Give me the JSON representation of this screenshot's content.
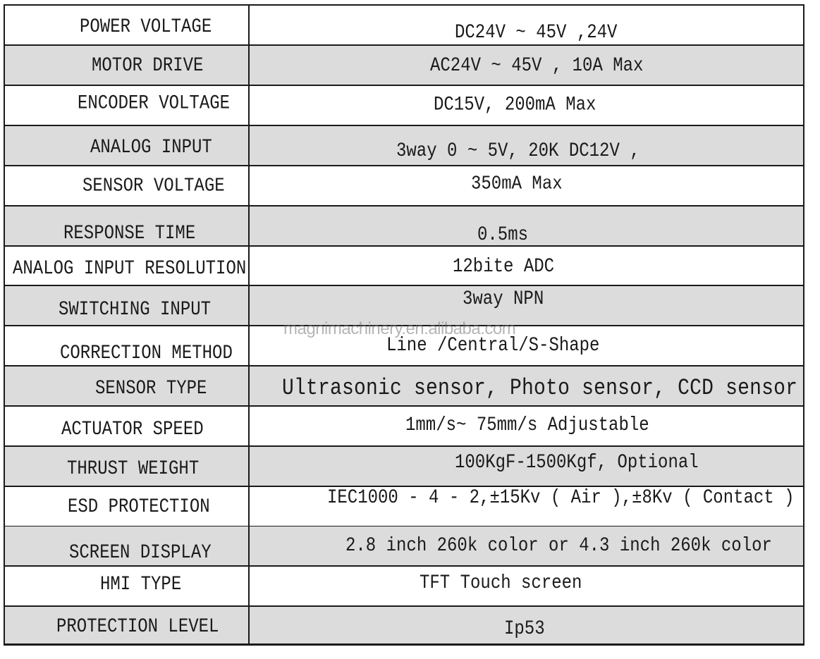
{
  "rows": [
    {
      "label": "POWER VOLTAGE",
      "value": "DC24V ~ 45V ,24V"
    },
    {
      "label": "MOTOR DRIVE",
      "value": "AC24V ~ 45V , 10A Max"
    },
    {
      "label": "ENCODER VOLTAGE",
      "value": "DC15V, 200mA Max"
    },
    {
      "label": "ANALOG INPUT",
      "value": "3way 0 ~ 5V, 20K DC12V ,"
    },
    {
      "label": "SENSOR VOLTAGE",
      "value": "350mA Max"
    },
    {
      "label": "RESPONSE TIME",
      "value": "0.5ms"
    },
    {
      "label": "ANALOG INPUT RESOLUTION",
      "value": "12bite ADC"
    },
    {
      "label": "SWITCHING INPUT",
      "value": "3way NPN"
    },
    {
      "label": "CORRECTION METHOD",
      "value": "Line /Central/S-Shape"
    },
    {
      "label": "SENSOR TYPE",
      "value": "Ultrasonic sensor, Photo sensor, CCD sensor"
    },
    {
      "label": "ACTUATOR SPEED",
      "value": "1mm/s~ 75mm/s Adjustable"
    },
    {
      "label": "THRUST WEIGHT",
      "value": "100KgF-1500Kgf, Optional"
    },
    {
      "label": "ESD PROTECTION",
      "value": "IEC1000 - 4 - 2,±15Kv ( Air ),±8Kv ( Contact )"
    },
    {
      "label": "SCREEN DISPLAY",
      "value": "2.8 inch 260k color or 4.3 inch 260k color"
    },
    {
      "label": "HMI TYPE",
      "value": "TFT Touch screen"
    },
    {
      "label": "PROTECTION LEVEL",
      "value": "Ip53"
    }
  ],
  "watermark": "magnimachinery.en.alibaba.com",
  "colors": {
    "shaded_row": "#dcdcdc",
    "border": "#1a1a1a"
  }
}
